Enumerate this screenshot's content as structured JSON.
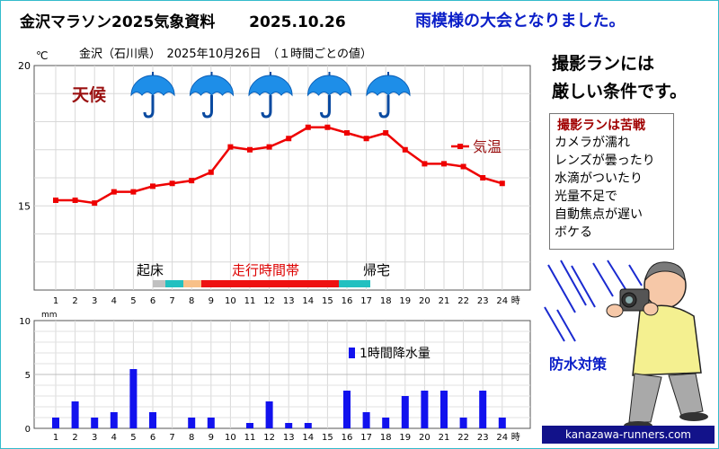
{
  "header": {
    "title": "金沢マラソン2025気象資料",
    "date": "2025.10.26",
    "message": "雨模様の大会となりました。"
  },
  "side": {
    "line1": "撮影ランには",
    "line2": "厳しい条件です。",
    "tips_title": "撮影ランは苦戦",
    "tips": [
      "カメラが濡れ",
      "レンズが曇ったり",
      "水滴がついたり",
      "光量不足で",
      "自動焦点が遅い",
      "ボケる"
    ],
    "waterproof": "防水対策",
    "site": "kanazawa-runners.com"
  },
  "colors": {
    "temp_line": "#ee0000",
    "rain_bar": "#1212ee",
    "umbrella": "#1e8ee8",
    "run_band": "#ee1111",
    "teal_band": "#22c0c0"
  },
  "chart_data": [
    {
      "type": "line",
      "title": "金沢（石川県）　2025年10月26日　（１時間ごとの値）",
      "unit": "℃",
      "legend": "気温",
      "weather_label": "天候",
      "weather_icons": [
        "umbrella-icon",
        "umbrella-icon",
        "umbrella-icon",
        "umbrella-icon",
        "umbrella-icon"
      ],
      "x": [
        1,
        2,
        3,
        4,
        5,
        6,
        7,
        8,
        9,
        10,
        11,
        12,
        13,
        14,
        15,
        16,
        17,
        18,
        19,
        20,
        21,
        22,
        23,
        24
      ],
      "x_suffix": "時",
      "values": [
        15.2,
        15.2,
        15.1,
        15.5,
        15.5,
        15.7,
        15.8,
        15.9,
        16.2,
        17.1,
        17.0,
        17.1,
        17.4,
        17.8,
        17.8,
        17.6,
        17.4,
        17.6,
        17.0,
        16.5,
        16.5,
        16.4,
        16.0,
        15.8
      ],
      "ylim": [
        12,
        20
      ],
      "yticks": [
        15,
        20
      ],
      "bands": {
        "wake_label": "起床",
        "run_label": "走行時間帯",
        "home_label": "帰宅"
      }
    },
    {
      "type": "bar",
      "legend": "1時間降水量",
      "unit": "mm",
      "x": [
        1,
        2,
        3,
        4,
        5,
        6,
        7,
        8,
        9,
        10,
        11,
        12,
        13,
        14,
        15,
        16,
        17,
        18,
        19,
        20,
        21,
        22,
        23,
        24
      ],
      "x_suffix": "時",
      "values": [
        1.0,
        2.5,
        1.0,
        1.5,
        5.5,
        1.5,
        0,
        1.0,
        1.0,
        0,
        0.5,
        2.5,
        0.5,
        0.5,
        0,
        3.5,
        1.5,
        1.0,
        3.0,
        3.5,
        3.5,
        1.0,
        3.5,
        1.0
      ],
      "ylim": [
        0,
        10
      ],
      "yticks": [
        0,
        5,
        10
      ]
    }
  ]
}
